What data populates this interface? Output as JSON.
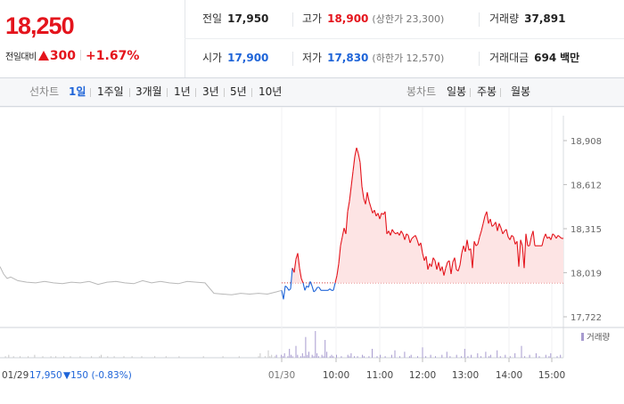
{
  "header": {
    "price": "18,250",
    "change_label": "전일대비",
    "change_value": "300",
    "change_pct": "+1.67%",
    "stats": {
      "prev_label": "전일",
      "prev_value": "17,950",
      "high_label": "고가",
      "high_value": "18,900",
      "upper_limit": "(상한가 23,300)",
      "volume_label": "거래량",
      "volume_value": "37,891",
      "open_label": "시가",
      "open_value": "17,900",
      "low_label": "저가",
      "low_value": "17,830",
      "lower_limit": "(하한가 12,570)",
      "amount_label": "거래대금",
      "amount_value": "694",
      "amount_unit": "백만"
    }
  },
  "tabs": {
    "line_label": "선차트",
    "periods": [
      "1일",
      "1주일",
      "3개월",
      "1년",
      "3년",
      "5년",
      "10년"
    ],
    "active_period": "1일",
    "candle_label": "봉차트",
    "candles": [
      "일봉",
      "주봉",
      "월봉"
    ]
  },
  "colors": {
    "up": "#e4141c",
    "down": "#1e64d8",
    "prev_day": "#b8b8b8",
    "fill": "#fde4e4",
    "volume": "#a79bcf"
  },
  "chart_data": {
    "type": "line",
    "prev_close": 17950,
    "ylim": [
      17722,
      18908
    ],
    "y_ticks": [
      "18,908",
      "18,612",
      "18,315",
      "18,019",
      "17,722"
    ],
    "y_tick_values": [
      18908,
      18612,
      18315,
      18019,
      17722
    ],
    "x_labels": [
      "01/30",
      "10:00",
      "11:00",
      "12:00",
      "13:00",
      "14:00",
      "15:00"
    ],
    "prev_day_label": "01/29",
    "prev_day_close": "17,950",
    "prev_day_change": "▼150 (-0.83%)",
    "volume_legend": "거래량",
    "prev_day_series": {
      "x": [
        0,
        4,
        8,
        12,
        20,
        30,
        40,
        50,
        60,
        70,
        80,
        90,
        100,
        110,
        120,
        130,
        140,
        150,
        160,
        170,
        180,
        190,
        200,
        210,
        220,
        230,
        240,
        250,
        260,
        270,
        280,
        290,
        300,
        310,
        316
      ],
      "y": [
        18060,
        18010,
        17980,
        17990,
        17965,
        17955,
        17950,
        17960,
        17950,
        17945,
        17955,
        17950,
        17960,
        17940,
        17955,
        17960,
        17950,
        17945,
        17965,
        17950,
        17960,
        17950,
        17945,
        17960,
        17955,
        17950,
        17880,
        17875,
        17870,
        17880,
        17875,
        17880,
        17875,
        17890,
        17900
      ]
    },
    "today_series": {
      "x": [
        0,
        2,
        4,
        6,
        8,
        10,
        12,
        14,
        16,
        18,
        20,
        22,
        24,
        26,
        28,
        30,
        32,
        34,
        36,
        38,
        40,
        42,
        44,
        46,
        48,
        50,
        52,
        54,
        56,
        58,
        60,
        62,
        64,
        66,
        68,
        70,
        72,
        74,
        76,
        78,
        80,
        82,
        84,
        86,
        88,
        90,
        92,
        94,
        96,
        98,
        100,
        102,
        104,
        106,
        108,
        110,
        112,
        114,
        116,
        118,
        120,
        122,
        124,
        126,
        128,
        130,
        132,
        134,
        136,
        138,
        140,
        142,
        144,
        146,
        148,
        150,
        152,
        154,
        156,
        158,
        160,
        162,
        164,
        166,
        168,
        170,
        172,
        174,
        176,
        178,
        180,
        182,
        184,
        186,
        188,
        190,
        192,
        194,
        196,
        198,
        200,
        202,
        204,
        206,
        208,
        210,
        212,
        214,
        216,
        218,
        220,
        222,
        224,
        226,
        228,
        230,
        232,
        234,
        236,
        238,
        240,
        242,
        244,
        246,
        248,
        250,
        252,
        254,
        256,
        258,
        260,
        262,
        264,
        266,
        268,
        270,
        272,
        274,
        276,
        278,
        280,
        282,
        284,
        286,
        288,
        290,
        292,
        294,
        296,
        298,
        300,
        302,
        304,
        306,
        308,
        310,
        312,
        314,
        316
      ],
      "y": [
        17900,
        17840,
        17930,
        17920,
        17900,
        17910,
        18050,
        18020,
        18110,
        18150,
        18050,
        17980,
        17950,
        17900,
        17930,
        17920,
        17960,
        17930,
        17890,
        17900,
        17920,
        17920,
        17900,
        17900,
        17900,
        17900,
        17900,
        17910,
        17900,
        17900,
        17950,
        18000,
        18080,
        18200,
        18260,
        18320,
        18280,
        18430,
        18500,
        18600,
        18700,
        18800,
        18860,
        18820,
        18760,
        18600,
        18520,
        18480,
        18560,
        18500,
        18460,
        18420,
        18440,
        18400,
        18420,
        18380,
        18420,
        18410,
        18430,
        18280,
        18300,
        18270,
        18310,
        18290,
        18280,
        18290,
        18270,
        18300,
        18280,
        18240,
        18280,
        18270,
        18220,
        18250,
        18260,
        18270,
        18240,
        18200,
        18220,
        18150,
        18100,
        18130,
        18040,
        18080,
        18060,
        18120,
        18100,
        18040,
        18090,
        18030,
        18060,
        18000,
        18050,
        18090,
        18100,
        18010,
        18090,
        18120,
        18040,
        18030,
        18070,
        18150,
        18200,
        18160,
        18240,
        18170,
        18180,
        18050,
        18230,
        18200,
        18210,
        18260,
        18300,
        18350,
        18400,
        18430,
        18350,
        18380,
        18330,
        18340,
        18360,
        18300,
        18350,
        18320,
        18280,
        18300,
        18310,
        18260,
        18240,
        18270,
        18260,
        18210,
        18230,
        18060,
        18240,
        18200,
        18050,
        18280,
        18200,
        18200,
        18260,
        18300,
        18200,
        18200,
        18200,
        18200,
        18200,
        18250,
        18280,
        18250,
        18260,
        18240,
        18280,
        18270,
        18250,
        18270,
        18260,
        18250,
        18250
      ]
    },
    "volume": [
      0,
      0,
      1,
      0,
      2,
      0,
      0,
      1,
      0,
      0,
      0,
      1,
      0,
      0,
      0,
      0,
      1,
      0,
      0,
      0,
      2,
      0,
      0,
      0,
      0,
      1,
      0,
      0,
      0,
      0,
      1,
      0,
      0,
      1,
      0,
      0,
      0,
      0,
      1,
      0,
      0,
      0,
      1,
      0,
      0,
      0,
      0,
      0,
      1,
      0,
      0,
      0,
      0,
      0,
      0,
      1,
      0,
      0,
      0,
      0,
      1,
      2,
      0,
      0,
      0,
      1,
      0,
      0,
      0,
      1,
      0,
      0,
      0,
      0,
      0,
      1,
      0,
      0,
      0,
      0,
      1,
      0,
      0,
      0,
      0,
      0,
      1,
      0,
      0,
      0,
      0,
      0,
      0,
      0,
      1,
      0,
      0,
      0,
      0,
      0,
      0,
      1,
      0,
      0,
      0,
      0,
      0,
      0,
      0,
      1,
      0,
      0,
      0,
      0,
      0,
      0,
      0,
      0,
      0,
      0,
      0,
      0,
      0,
      0,
      1,
      0,
      0,
      0,
      0,
      0,
      0,
      0,
      0,
      0,
      0,
      0,
      1,
      0,
      0,
      0,
      0,
      0,
      0,
      0,
      0,
      0,
      1,
      0,
      0,
      0,
      0,
      0,
      0,
      0,
      0,
      0,
      0,
      0,
      1,
      3,
      0,
      0,
      1,
      0,
      5,
      1,
      2,
      0,
      1,
      2,
      0,
      0,
      2,
      1,
      3,
      0,
      1,
      6,
      2,
      1,
      0,
      8,
      2,
      0,
      1,
      3,
      1,
      14,
      2,
      4,
      0,
      2,
      1,
      18,
      3,
      1,
      0,
      2,
      1,
      12,
      4,
      0,
      1,
      2,
      1,
      0,
      2,
      0,
      0,
      1,
      0,
      0,
      0,
      2,
      1,
      3,
      0,
      1,
      0,
      1,
      0,
      0,
      2,
      1,
      0,
      0,
      1,
      0,
      6,
      0,
      0,
      1,
      0,
      2,
      0,
      0,
      1,
      0,
      0,
      0,
      2,
      0,
      5,
      0,
      0,
      1,
      0,
      0,
      4,
      0,
      0,
      1,
      2,
      0,
      0,
      0,
      1,
      0,
      0,
      7,
      0,
      1,
      0,
      0,
      2,
      0,
      0,
      1,
      0,
      0,
      0,
      2,
      0,
      0,
      4,
      0,
      1,
      0,
      0,
      0,
      2,
      0,
      0,
      1,
      0,
      6,
      0,
      1,
      0,
      2,
      0,
      0,
      0,
      3,
      0,
      1,
      0,
      0,
      4,
      0,
      1,
      2,
      0,
      0,
      0,
      5,
      0,
      1,
      0,
      0,
      2,
      0,
      0,
      1,
      0,
      0,
      3,
      0,
      0,
      0,
      8,
      0,
      1,
      0,
      0,
      2,
      0,
      0,
      0,
      3,
      0,
      1,
      0,
      0,
      0,
      2,
      0,
      1,
      3,
      0,
      0,
      0,
      1,
      0,
      2
    ]
  }
}
